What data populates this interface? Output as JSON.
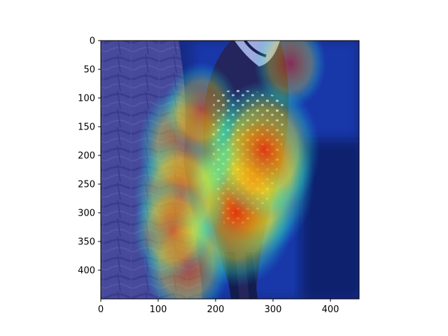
{
  "chart_data": {
    "type": "heatmap",
    "title": "",
    "xlabel": "",
    "ylabel": "",
    "xlim": [
      0,
      450
    ],
    "ylim": [
      450,
      0
    ],
    "x_ticks": [
      0,
      100,
      200,
      300,
      400
    ],
    "y_ticks": [
      0,
      50,
      100,
      150,
      200,
      250,
      300,
      350,
      400
    ],
    "colormap": "jet",
    "overlay_alpha": 0.5,
    "background": "photo of a woodpecker clinging to a tree trunk",
    "grid": false,
    "hotspots": [
      {
        "x": 265,
        "y": 245,
        "intensity": 1.0
      },
      {
        "x": 235,
        "y": 300,
        "intensity": 0.95
      },
      {
        "x": 285,
        "y": 190,
        "intensity": 0.85
      },
      {
        "x": 150,
        "y": 185,
        "intensity": 0.7
      },
      {
        "x": 140,
        "y": 270,
        "intensity": 0.65
      },
      {
        "x": 150,
        "y": 390,
        "intensity": 0.55
      },
      {
        "x": 125,
        "y": 330,
        "intensity": 0.45
      },
      {
        "x": 175,
        "y": 120,
        "intensity": 0.4
      },
      {
        "x": 330,
        "y": 40,
        "intensity": 0.35
      }
    ]
  }
}
